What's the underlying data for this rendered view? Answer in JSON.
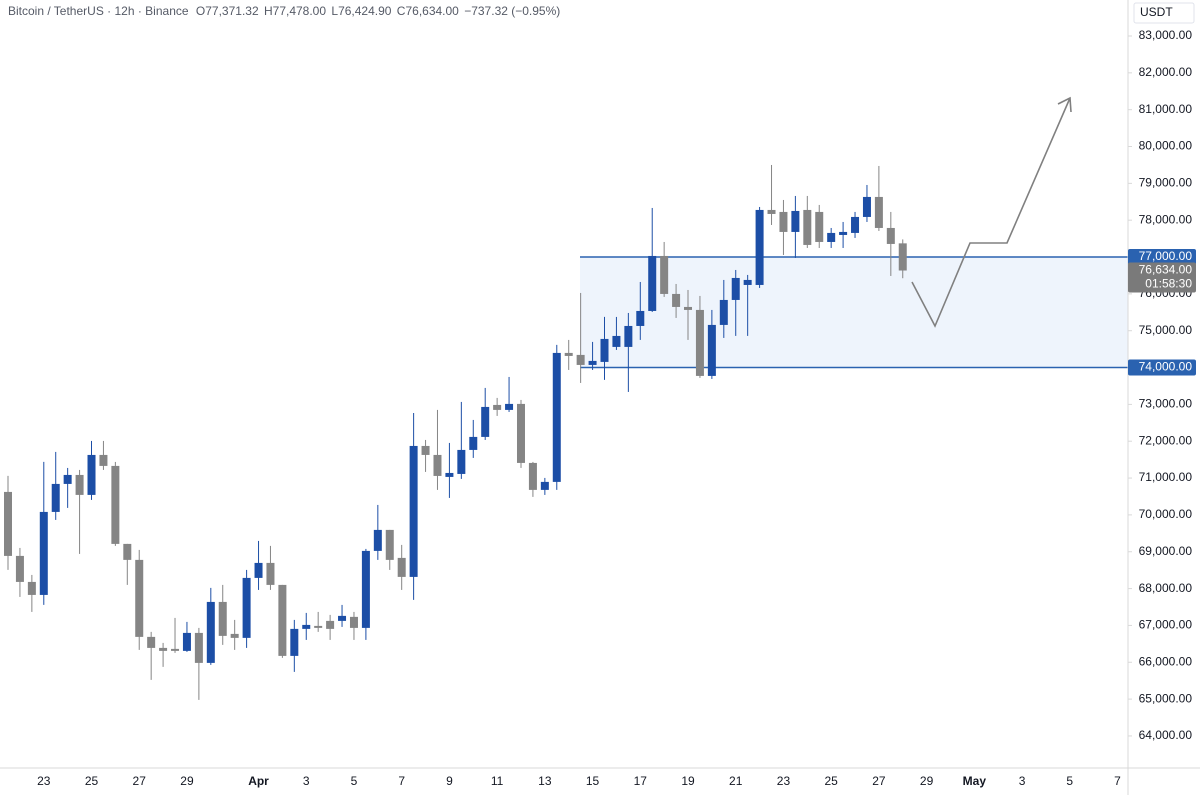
{
  "chart_data": {
    "type": "candlestick",
    "title": "Bitcoin / TetherUS · 12h · Binance",
    "currency": "USDT",
    "header": {
      "open_label": "O",
      "open": "77,371.32",
      "high_label": "H",
      "high": "77,478.00",
      "low_label": "L",
      "low": "76,424.90",
      "close_label": "C",
      "close": "76,634.00",
      "change": "−737.32 (−0.95%)"
    },
    "categories": [
      null,
      null,
      null,
      "23",
      null,
      null,
      null,
      "25",
      null,
      null,
      null,
      "27",
      null,
      null,
      null,
      "29",
      null,
      null,
      null,
      null,
      null,
      "Apr",
      null,
      null,
      null,
      "3",
      null,
      null,
      null,
      "5",
      null,
      null,
      null,
      "7",
      null,
      null,
      null,
      "9",
      null,
      null,
      null,
      "11",
      null,
      null,
      null,
      "13",
      null,
      null,
      null,
      "15",
      null,
      null,
      null,
      "17",
      null,
      null,
      null,
      "19",
      null,
      null,
      null,
      "21",
      null,
      null,
      null,
      "23",
      null,
      null,
      null,
      "25",
      null,
      null,
      null,
      "27",
      null,
      null,
      null,
      "29",
      null,
      null,
      null,
      "May",
      null,
      null,
      null,
      "3",
      null,
      null,
      null,
      "5",
      null,
      null,
      null,
      "7"
    ],
    "open": [
      70624,
      68887,
      68181,
      67828,
      70081,
      70841,
      71085,
      70543,
      71628,
      71330,
      69213,
      68779,
      66689,
      66390,
      66363,
      66309,
      66797,
      65983,
      67638,
      66770,
      66662,
      68290,
      68697,
      68100,
      66173,
      66906,
      66987,
      67123,
      67123,
      67232,
      66933,
      69023,
      69593,
      68833,
      68317,
      71872,
      71628,
      71031,
      71112,
      71764,
      72117,
      72985,
      72850,
      73013,
      71411,
      70679,
      70896,
      74397,
      74343,
      74071,
      74153,
      74560,
      74560,
      75129,
      75536,
      77029,
      75998,
      75645,
      75564,
      73773,
      75157,
      75835,
      76242,
      76242,
      78278,
      78224,
      77681,
      78278,
      78224,
      77409,
      77599,
      77654,
      78088,
      78631,
      77789,
      77371.32,
      null,
      null,
      null,
      null,
      null,
      null,
      null,
      null,
      null,
      null,
      null,
      null,
      null,
      null,
      null,
      null,
      null,
      null
    ],
    "high": [
      71058,
      69104,
      68371,
      71438,
      71710,
      71275,
      71221,
      72008,
      72008,
      71438,
      69213,
      69050,
      66825,
      66526,
      67204,
      67096,
      66933,
      68019,
      68100,
      67150,
      68507,
      69294,
      69159,
      68100,
      67150,
      67340,
      67367,
      67286,
      67557,
      67367,
      69077,
      70271,
      69593,
      69186,
      72768,
      72035,
      72850,
      71954,
      73067,
      72578,
      73447,
      73176,
      73745,
      73121,
      71438,
      71004,
      74614,
      74750,
      76025,
      74696,
      75374,
      75374,
      75482,
      76323,
      78332,
      77409,
      76269,
      76106,
      75944,
      75564,
      76378,
      76649,
      76514,
      78359,
      79499,
      78549,
      78658,
      78658,
      78414,
      77789,
      77952,
      78224,
      78956,
      79472,
      78224,
      77478,
      null,
      null,
      null,
      null,
      null,
      null,
      null,
      null,
      null,
      null,
      null,
      null,
      null,
      null,
      null,
      null,
      null,
      null
    ],
    "low": [
      68507,
      67774,
      67367,
      67557,
      69864,
      70190,
      68941,
      70407,
      71221,
      69159,
      68100,
      66336,
      65522,
      65875,
      66255,
      66282,
      64979,
      65929,
      66472,
      66336,
      66390,
      67964,
      67964,
      66119,
      65739,
      66607,
      66825,
      66607,
      66960,
      66607,
      66607,
      68779,
      68507,
      67964,
      67693,
      71167,
      70679,
      70461,
      70977,
      71547,
      72035,
      72687,
      72795,
      71275,
      70489,
      70543,
      70679,
      73935,
      73582,
      73935,
      73664,
      74478,
      73338,
      74750,
      75509,
      75917,
      75347,
      74750,
      73719,
      73691,
      74804,
      74859,
      74859,
      76161,
      77870,
      77056,
      76975,
      77246,
      77246,
      77246,
      77246,
      77518,
      77952,
      77708,
      76486,
      76424.9,
      null,
      null,
      null,
      null,
      null,
      null,
      null,
      null,
      null,
      null,
      null,
      null,
      null,
      null,
      null,
      null,
      null,
      null
    ],
    "close": [
      68887,
      68181,
      67828,
      70081,
      70841,
      71085,
      70543,
      71628,
      71330,
      69213,
      68779,
      66689,
      66390,
      66309,
      66309,
      66797,
      65983,
      67638,
      66716,
      66662,
      68290,
      68697,
      68100,
      66173,
      66906,
      67014,
      66933,
      66906,
      67259,
      66933,
      69023,
      69593,
      68779,
      68317,
      71872,
      71628,
      71058,
      71139,
      71764,
      72117,
      72931,
      72850,
      73013,
      71411,
      70679,
      70896,
      74397,
      74315,
      74071,
      74180,
      74777,
      74858,
      75129,
      75536,
      77029,
      75998,
      75645,
      75564,
      73773,
      75157,
      75835,
      76432,
      76378,
      78278,
      78169,
      77681,
      78251,
      77328,
      77409,
      77654,
      77681,
      78088,
      78631,
      77789,
      77355,
      76634,
      null,
      null,
      null,
      null,
      null,
      null,
      null,
      null,
      null,
      null,
      null,
      null,
      null,
      null,
      null,
      null,
      null,
      null
    ],
    "up_color": "#1c4ea6",
    "down_color": "#858585",
    "ylim": [
      63130,
      83977
    ],
    "yticks": [
      {
        "value": 64000,
        "label": "64,000.00"
      },
      {
        "value": 65000,
        "label": "65,000.00"
      },
      {
        "value": 66000,
        "label": "66,000.00"
      },
      {
        "value": 67000,
        "label": "67,000.00"
      },
      {
        "value": 68000,
        "label": "68,000.00"
      },
      {
        "value": 69000,
        "label": "69,000.00"
      },
      {
        "value": 70000,
        "label": "70,000.00"
      },
      {
        "value": 71000,
        "label": "71,000.00"
      },
      {
        "value": 72000,
        "label": "72,000.00"
      },
      {
        "value": 73000,
        "label": "73,000.00"
      },
      {
        "value": 74000,
        "label": "74,000.00"
      },
      {
        "value": 75000,
        "label": "75,000.00"
      },
      {
        "value": 76000,
        "label": "76,000.00"
      },
      {
        "value": 77000,
        "label": "77,000.00"
      },
      {
        "value": 78000,
        "label": "78,000.00"
      },
      {
        "value": 79000,
        "label": "79,000.00"
      },
      {
        "value": 80000,
        "label": "80,000.00"
      },
      {
        "value": 81000,
        "label": "81,000.00"
      },
      {
        "value": 82000,
        "label": "82,000.00"
      },
      {
        "value": 83000,
        "label": "83,000.00"
      }
    ],
    "levels": [
      {
        "value": 77000,
        "label": "77,000.00"
      },
      {
        "value": 74000,
        "label": "74,000.00"
      }
    ],
    "level_color": "#2a62b0",
    "zone_color": "#eef4fc",
    "last_price": {
      "value": 76634,
      "label": "76,634.00",
      "countdown": "01:58:30",
      "color": "#7a7a7a"
    }
  }
}
